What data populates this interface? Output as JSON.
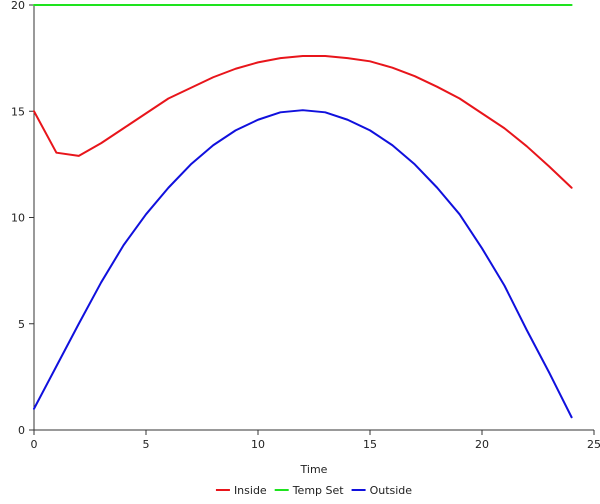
{
  "chart_data": {
    "type": "line",
    "xlabel": "Time",
    "ylabel": "",
    "title": "",
    "xlim": [
      0,
      25
    ],
    "ylim": [
      0,
      20
    ],
    "xticks": [
      0,
      5,
      10,
      15,
      20,
      25
    ],
    "yticks": [
      0,
      5,
      10,
      15,
      20
    ],
    "grid": false,
    "legend_position": "bottom",
    "series": [
      {
        "name": "Inside",
        "color": "#e8151b",
        "x": [
          0,
          1,
          2,
          3,
          4,
          5,
          6,
          7,
          8,
          9,
          10,
          11,
          12,
          13,
          14,
          15,
          16,
          17,
          18,
          19,
          20,
          21,
          22,
          23,
          24
        ],
        "y": [
          15.0,
          13.05,
          12.9,
          13.5,
          14.2,
          14.9,
          15.6,
          16.1,
          16.6,
          17.0,
          17.3,
          17.5,
          17.6,
          17.6,
          17.5,
          17.35,
          17.05,
          16.65,
          16.15,
          15.6,
          14.9,
          14.2,
          13.35,
          12.4,
          11.4
        ]
      },
      {
        "name": "Temp Set",
        "color": "#1ee31e",
        "x": [
          0,
          24
        ],
        "y": [
          20,
          20
        ]
      },
      {
        "name": "Outside",
        "color": "#1010dd",
        "x": [
          0,
          1,
          2,
          3,
          4,
          5,
          6,
          7,
          8,
          9,
          10,
          11,
          12,
          13,
          14,
          15,
          16,
          17,
          18,
          19,
          20,
          21,
          22,
          23,
          24
        ],
        "y": [
          1.0,
          3.0,
          5.0,
          6.95,
          8.7,
          10.15,
          11.4,
          12.5,
          13.4,
          14.1,
          14.6,
          14.95,
          15.05,
          14.95,
          14.6,
          14.1,
          13.4,
          12.5,
          11.4,
          10.15,
          8.55,
          6.8,
          4.7,
          2.7,
          0.6
        ]
      }
    ]
  }
}
